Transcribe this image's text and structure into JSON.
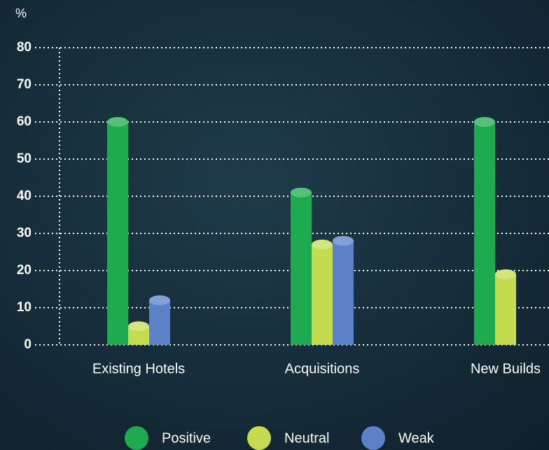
{
  "chart_data": {
    "type": "bar",
    "y_label": "%",
    "categories": [
      "Existing Hotels",
      "Acquisitions",
      "New Builds"
    ],
    "series": [
      {
        "name": "Positive",
        "color": "#1eab4f",
        "values": [
          60,
          41,
          60
        ]
      },
      {
        "name": "Neutral",
        "color": "#c5dc50",
        "values": [
          5,
          27,
          19
        ]
      },
      {
        "name": "Weak",
        "color": "#5b82c9",
        "values": [
          12,
          28,
          null
        ]
      }
    ],
    "ylim": [
      0,
      80
    ],
    "yticks": [
      0,
      10,
      20,
      30,
      40,
      50,
      60,
      70,
      80
    ],
    "grid": true
  }
}
